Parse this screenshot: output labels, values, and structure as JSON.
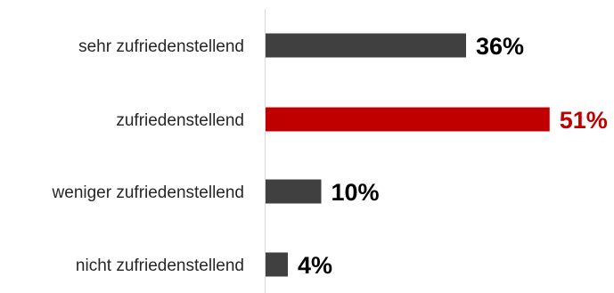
{
  "chart_data": {
    "type": "bar",
    "orientation": "horizontal",
    "categories": [
      "sehr zufriedenstellend",
      "zufriedenstellend",
      "weniger zufriedenstellend",
      "nicht zufriedenstellend"
    ],
    "values": [
      36,
      51,
      10,
      4
    ],
    "value_labels": [
      "36%",
      "51%",
      "10%",
      "4%"
    ],
    "unit": "%",
    "highlight_index": 1,
    "colors": {
      "default_bar": "#404040",
      "highlight_bar": "#c00000",
      "default_label": "#000000",
      "highlight_label": "#c00000",
      "category_label": "#262626",
      "axis": "#d9d9d9"
    },
    "xlim": [
      0,
      100
    ],
    "grid": false,
    "legend": "none"
  }
}
